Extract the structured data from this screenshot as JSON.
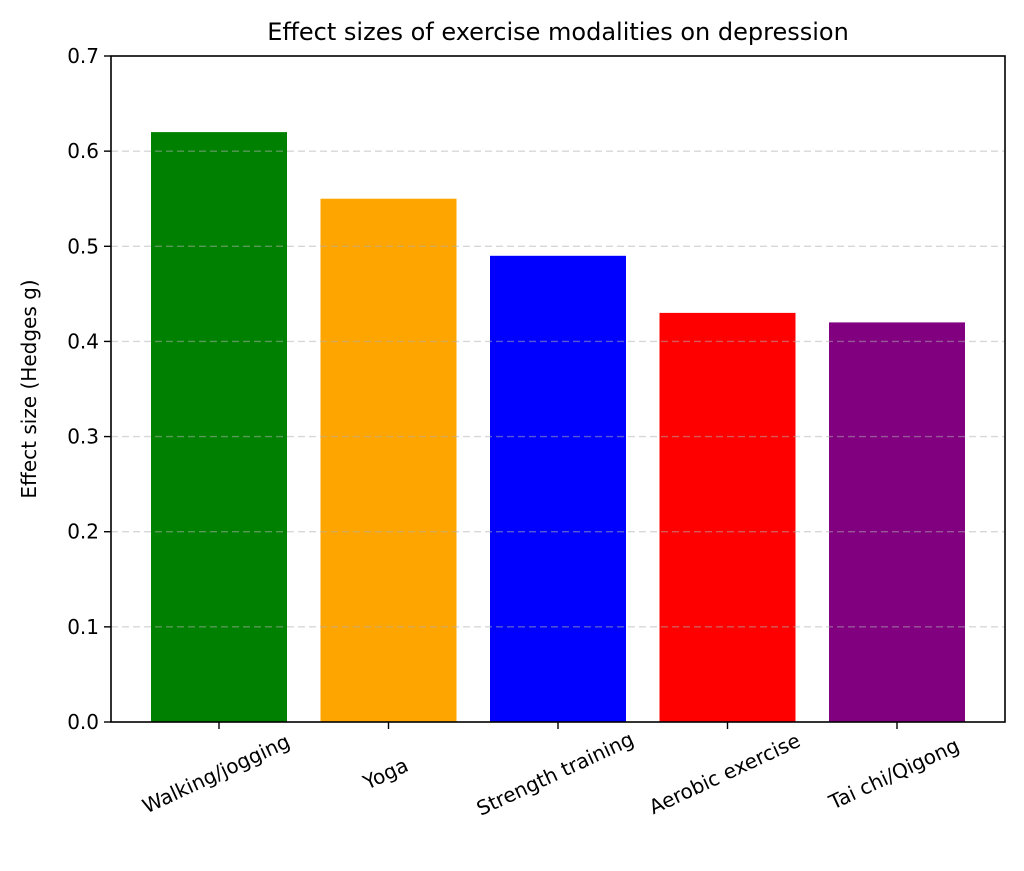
{
  "chart_data": {
    "type": "bar",
    "title": "Effect sizes of exercise modalities on depression",
    "xlabel": "",
    "ylabel": "Effect size (Hedges g)",
    "categories": [
      "Walking/jogging",
      "Yoga",
      "Strength training",
      "Aerobic exercise",
      "Tai chi/Qigong"
    ],
    "values": [
      0.62,
      0.55,
      0.49,
      0.43,
      0.42
    ],
    "colors": [
      "#008000",
      "#ffa500",
      "#0000ff",
      "#ff0000",
      "#800080"
    ],
    "ylim": [
      0,
      0.7
    ],
    "yticks": [
      0.0,
      0.1,
      0.2,
      0.3,
      0.4,
      0.5,
      0.6,
      0.7
    ],
    "ytick_labels": [
      "0.0",
      "0.1",
      "0.2",
      "0.3",
      "0.4",
      "0.5",
      "0.6",
      "0.7"
    ],
    "grid": {
      "axis": "y",
      "style": "dashed",
      "color": "#b0b0b0"
    },
    "xtick_rotation_deg": 25,
    "legend": "none"
  }
}
